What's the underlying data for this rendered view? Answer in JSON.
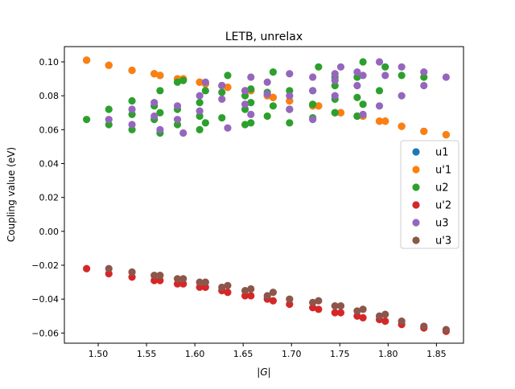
{
  "chart_data": {
    "type": "scatter",
    "title": "LETB, unrelax",
    "xlabel": "|G|",
    "ylabel": "Coupling value (eV)",
    "xlim": [
      1.465,
      1.878
    ],
    "ylim": [
      -0.066,
      0.109
    ],
    "xticks": [
      "1.50",
      "1.55",
      "1.60",
      "1.65",
      "1.70",
      "1.75",
      "1.80",
      "1.85"
    ],
    "xtick_values": [
      1.5,
      1.55,
      1.6,
      1.65,
      1.7,
      1.75,
      1.8,
      1.85
    ],
    "yticks": [
      "0.10",
      "0.08",
      "0.06",
      "0.04",
      "0.02",
      "0.00",
      "−0.02",
      "−0.04",
      "−0.06"
    ],
    "ytick_values": [
      0.1,
      0.08,
      0.06,
      0.04,
      0.02,
      0.0,
      -0.02,
      -0.04,
      -0.06
    ],
    "grid": false,
    "legend_position": "right-center",
    "series": [
      {
        "name": "u1",
        "color": "#1f77b4",
        "x": [
          1.488,
          1.511,
          1.535,
          1.558,
          1.564,
          1.582,
          1.588,
          1.605,
          1.611,
          1.628,
          1.634,
          1.652,
          1.658,
          1.675,
          1.681,
          1.698,
          1.722,
          1.728,
          1.745,
          1.751,
          1.768,
          1.774,
          1.791,
          1.797,
          1.814,
          1.837,
          1.86
        ],
        "y": [
          0.101,
          0.098,
          0.095,
          0.093,
          0.092,
          0.09,
          0.09,
          0.088,
          0.087,
          0.086,
          0.085,
          0.083,
          0.083,
          0.08,
          0.079,
          0.077,
          0.074,
          0.074,
          0.07,
          0.07,
          0.068,
          0.068,
          0.065,
          0.065,
          0.062,
          0.059,
          0.057
        ]
      },
      {
        "name": "u'1",
        "color": "#ff7f0e",
        "x": [
          1.488,
          1.511,
          1.535,
          1.558,
          1.564,
          1.582,
          1.588,
          1.605,
          1.611,
          1.628,
          1.634,
          1.652,
          1.658,
          1.675,
          1.681,
          1.698,
          1.722,
          1.728,
          1.745,
          1.751,
          1.768,
          1.774,
          1.791,
          1.797,
          1.814,
          1.837,
          1.86
        ],
        "y": [
          0.101,
          0.098,
          0.095,
          0.093,
          0.092,
          0.09,
          0.09,
          0.088,
          0.087,
          0.086,
          0.085,
          0.083,
          0.083,
          0.08,
          0.079,
          0.077,
          0.074,
          0.074,
          0.07,
          0.07,
          0.068,
          0.068,
          0.065,
          0.065,
          0.062,
          0.059,
          0.057
        ]
      },
      {
        "name": "u2",
        "color": "#2ca02c",
        "x": [
          1.488,
          1.511,
          1.511,
          1.535,
          1.535,
          1.535,
          1.558,
          1.558,
          1.564,
          1.564,
          1.564,
          1.582,
          1.582,
          1.582,
          1.588,
          1.605,
          1.605,
          1.605,
          1.611,
          1.611,
          1.628,
          1.628,
          1.634,
          1.652,
          1.652,
          1.652,
          1.658,
          1.658,
          1.658,
          1.675,
          1.675,
          1.681,
          1.681,
          1.698,
          1.698,
          1.698,
          1.722,
          1.722,
          1.722,
          1.728,
          1.745,
          1.745,
          1.745,
          1.745,
          1.768,
          1.768,
          1.768,
          1.774,
          1.774,
          1.791,
          1.797,
          1.814,
          1.837
        ],
        "y": [
          0.066,
          0.063,
          0.072,
          0.06,
          0.069,
          0.077,
          0.074,
          0.066,
          0.058,
          0.07,
          0.083,
          0.063,
          0.072,
          0.088,
          0.089,
          0.06,
          0.068,
          0.076,
          0.064,
          0.083,
          0.082,
          0.067,
          0.092,
          0.063,
          0.072,
          0.08,
          0.064,
          0.076,
          0.084,
          0.068,
          0.082,
          0.074,
          0.094,
          0.064,
          0.072,
          0.083,
          0.067,
          0.075,
          0.083,
          0.097,
          0.07,
          0.078,
          0.086,
          0.091,
          0.068,
          0.079,
          0.091,
          0.075,
          0.1,
          0.083,
          0.097,
          0.092,
          0.091
        ]
      },
      {
        "name": "u'2",
        "color": "#d62728",
        "x": [
          1.488,
          1.511,
          1.535,
          1.558,
          1.564,
          1.582,
          1.588,
          1.605,
          1.611,
          1.628,
          1.634,
          1.652,
          1.658,
          1.675,
          1.681,
          1.698,
          1.722,
          1.728,
          1.745,
          1.751,
          1.768,
          1.774,
          1.791,
          1.797,
          1.814,
          1.837,
          1.86
        ],
        "y": [
          -0.022,
          -0.025,
          -0.027,
          -0.029,
          -0.029,
          -0.031,
          -0.031,
          -0.033,
          -0.033,
          -0.035,
          -0.036,
          -0.038,
          -0.038,
          -0.04,
          -0.041,
          -0.043,
          -0.045,
          -0.046,
          -0.048,
          -0.048,
          -0.05,
          -0.051,
          -0.052,
          -0.053,
          -0.055,
          -0.057,
          -0.059
        ]
      },
      {
        "name": "u3",
        "color": "#9467bd",
        "x": [
          1.511,
          1.535,
          1.535,
          1.558,
          1.558,
          1.564,
          1.582,
          1.582,
          1.588,
          1.605,
          1.605,
          1.611,
          1.628,
          1.628,
          1.634,
          1.652,
          1.652,
          1.658,
          1.658,
          1.675,
          1.675,
          1.698,
          1.698,
          1.698,
          1.722,
          1.722,
          1.722,
          1.745,
          1.745,
          1.745,
          1.751,
          1.768,
          1.768,
          1.774,
          1.774,
          1.791,
          1.791,
          1.797,
          1.814,
          1.814,
          1.837,
          1.837,
          1.86
        ],
        "y": [
          0.066,
          0.063,
          0.072,
          0.068,
          0.076,
          0.06,
          0.066,
          0.074,
          0.058,
          0.071,
          0.08,
          0.088,
          0.078,
          0.086,
          0.061,
          0.075,
          0.083,
          0.069,
          0.091,
          0.081,
          0.088,
          0.072,
          0.08,
          0.093,
          0.083,
          0.091,
          0.066,
          0.08,
          0.089,
          0.093,
          0.097,
          0.086,
          0.094,
          0.069,
          0.092,
          0.074,
          0.1,
          0.092,
          0.08,
          0.097,
          0.086,
          0.094,
          0.091
        ]
      },
      {
        "name": "u'3",
        "color": "#8c564b",
        "x": [
          1.511,
          1.535,
          1.558,
          1.564,
          1.582,
          1.588,
          1.605,
          1.611,
          1.628,
          1.634,
          1.652,
          1.658,
          1.675,
          1.681,
          1.698,
          1.722,
          1.728,
          1.745,
          1.751,
          1.768,
          1.774,
          1.791,
          1.797,
          1.814,
          1.837,
          1.86
        ],
        "y": [
          -0.022,
          -0.024,
          -0.026,
          -0.026,
          -0.028,
          -0.028,
          -0.03,
          -0.03,
          -0.033,
          -0.032,
          -0.035,
          -0.034,
          -0.038,
          -0.036,
          -0.04,
          -0.042,
          -0.041,
          -0.044,
          -0.044,
          -0.047,
          -0.046,
          -0.05,
          -0.049,
          -0.053,
          -0.056,
          -0.058
        ]
      }
    ]
  }
}
